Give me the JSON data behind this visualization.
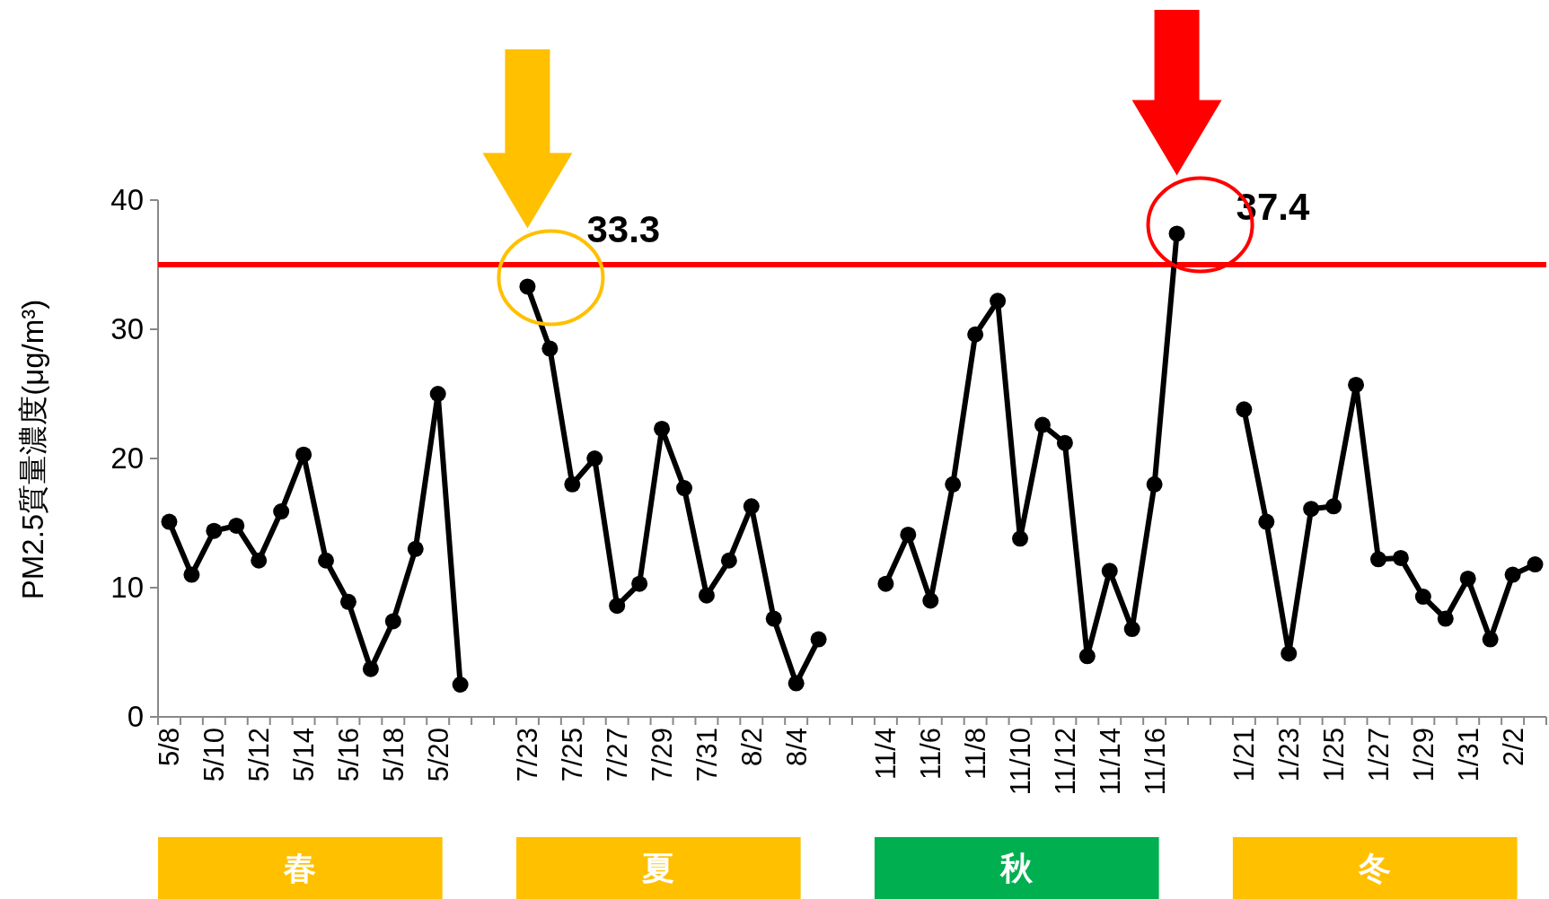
{
  "chart_data": {
    "type": "line",
    "ylabel": "PM2.5質量濃度(μg/m³)",
    "categories": [
      "5/8",
      null,
      "5/10",
      null,
      "5/12",
      null,
      "5/14",
      null,
      "5/16",
      null,
      "5/18",
      null,
      "5/20",
      null,
      null,
      null,
      "7/23",
      null,
      "7/25",
      null,
      "7/27",
      null,
      "7/29",
      null,
      "7/31",
      null,
      "8/2",
      null,
      "8/4",
      null,
      null,
      null,
      "11/4",
      null,
      "11/6",
      null,
      "11/8",
      null,
      "11/10",
      null,
      "11/12",
      null,
      "11/14",
      null,
      "11/16",
      null,
      null,
      null,
      "1/21",
      null,
      "1/23",
      null,
      "1/25",
      null,
      "1/27",
      null,
      "1/29",
      null,
      "1/31",
      null,
      "2/2",
      null
    ],
    "series": [
      {
        "color": "#000000",
        "values": [
          15.1,
          11.0,
          14.4,
          14.8,
          12.1,
          15.9,
          20.3,
          12.1,
          8.9,
          3.7,
          7.4,
          13.0,
          25.0,
          2.5,
          null,
          null,
          33.3,
          28.5,
          18.0,
          20.0,
          8.6,
          10.3,
          22.3,
          17.7,
          9.4,
          12.1,
          16.3,
          7.6,
          2.6,
          6.0,
          null,
          null,
          10.3,
          14.1,
          9.0,
          18.0,
          29.6,
          32.2,
          13.8,
          22.6,
          21.2,
          4.7,
          11.3,
          6.8,
          18.0,
          37.4,
          null,
          null,
          23.8,
          15.1,
          4.9,
          16.1,
          16.3,
          25.7,
          12.2,
          12.3,
          9.3,
          7.6,
          10.7,
          6.0,
          11.0,
          11.8
        ],
        "value_labels": [
          null,
          null,
          null,
          null,
          null,
          null,
          null,
          null,
          null,
          null,
          null,
          null,
          null,
          null,
          null,
          null,
          "33.3",
          null,
          null,
          null,
          null,
          null,
          null,
          null,
          null,
          null,
          null,
          null,
          null,
          null,
          null,
          null,
          null,
          null,
          null,
          null,
          null,
          null,
          null,
          null,
          null,
          null,
          null,
          null,
          null,
          "37.4",
          null,
          null,
          null,
          null,
          null,
          null,
          null,
          null,
          null,
          null,
          null,
          null,
          null,
          null,
          null,
          null
        ]
      }
    ],
    "ylim": [
      0,
      40
    ],
    "yticks": [
      0,
      10,
      20,
      30,
      40
    ],
    "marker": "circle",
    "line_style": "solid",
    "grid": false,
    "ref_lines": [
      {
        "axis": "y",
        "value": 35,
        "color": "#ff0000"
      }
    ],
    "annotations": [
      "春",
      "夏",
      "秋",
      "冬"
    ]
  }
}
